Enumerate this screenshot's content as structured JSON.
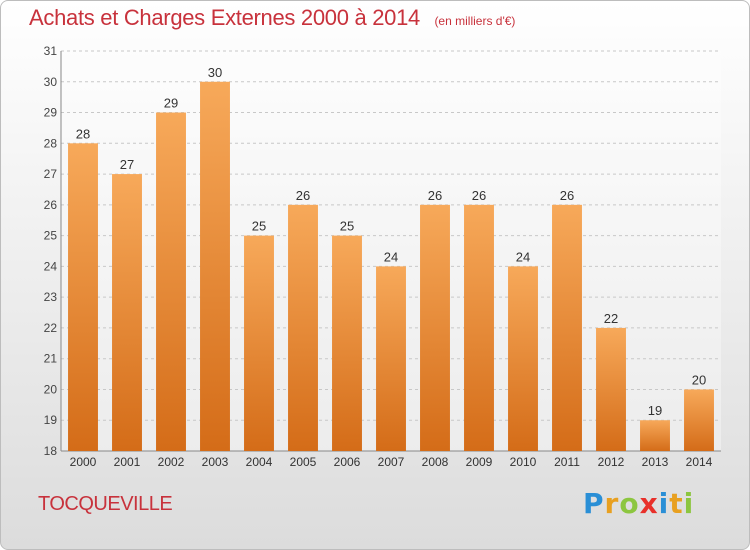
{
  "title": "Achats et Charges Externes 2000 à 2014",
  "unit": "(en milliers d'€)",
  "commune": "TOCQUEVILLE",
  "logo": {
    "letters": [
      "P",
      "r",
      "o",
      "x",
      "i",
      "t",
      "i"
    ],
    "colors": [
      "#2a8fd6",
      "#e8a020",
      "#8cc63f",
      "#e8302a",
      "#2a8fd6",
      "#e8a020",
      "#8cc63f"
    ]
  },
  "colors": {
    "bar_light": "#f7a95a",
    "bar_dark": "#d46c18",
    "title": "#c8323c",
    "grid": "#c8c8c8"
  },
  "chart_data": {
    "type": "bar",
    "categories": [
      "2000",
      "2001",
      "2002",
      "2003",
      "2004",
      "2005",
      "2006",
      "2007",
      "2008",
      "2009",
      "2010",
      "2011",
      "2012",
      "2013",
      "2014"
    ],
    "values": [
      28,
      27,
      29,
      30,
      25,
      26,
      25,
      24,
      26,
      26,
      24,
      26,
      22,
      19,
      20
    ],
    "ylim": [
      18,
      31
    ],
    "yticks": [
      18,
      19,
      20,
      21,
      22,
      23,
      24,
      25,
      26,
      27,
      28,
      29,
      30,
      31
    ],
    "grid": true
  }
}
